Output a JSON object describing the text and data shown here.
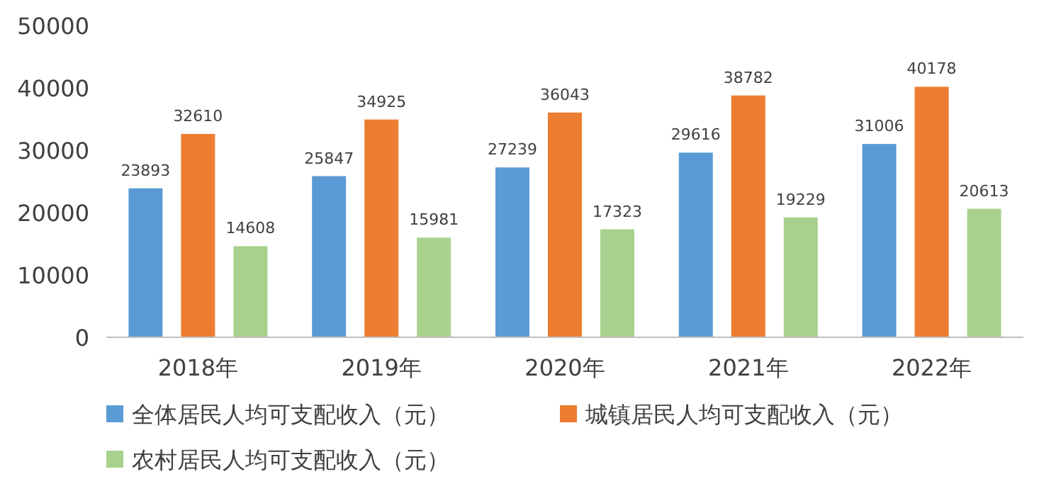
{
  "chart_data": {
    "type": "bar",
    "categories": [
      "2018年",
      "2019年",
      "2020年",
      "2021年",
      "2022年"
    ],
    "series": [
      {
        "name": "全体居民人均可支配收入（元）",
        "color": "#5b9bd5",
        "values": [
          23893,
          25847,
          27239,
          29616,
          31006
        ]
      },
      {
        "name": "城镇居民人均可支配收入（元）",
        "color": "#ed7d31",
        "values": [
          32610,
          34925,
          36043,
          38782,
          40178
        ]
      },
      {
        "name": "农村居民人均可支配收入（元）",
        "color": "#a9d18e",
        "values": [
          14608,
          15981,
          17323,
          19229,
          20613
        ]
      }
    ],
    "ylim": [
      0,
      50000
    ],
    "yticks": [
      0,
      10000,
      20000,
      30000,
      40000,
      50000
    ],
    "data_labels": true,
    "grid": false,
    "legend": "bottom"
  }
}
